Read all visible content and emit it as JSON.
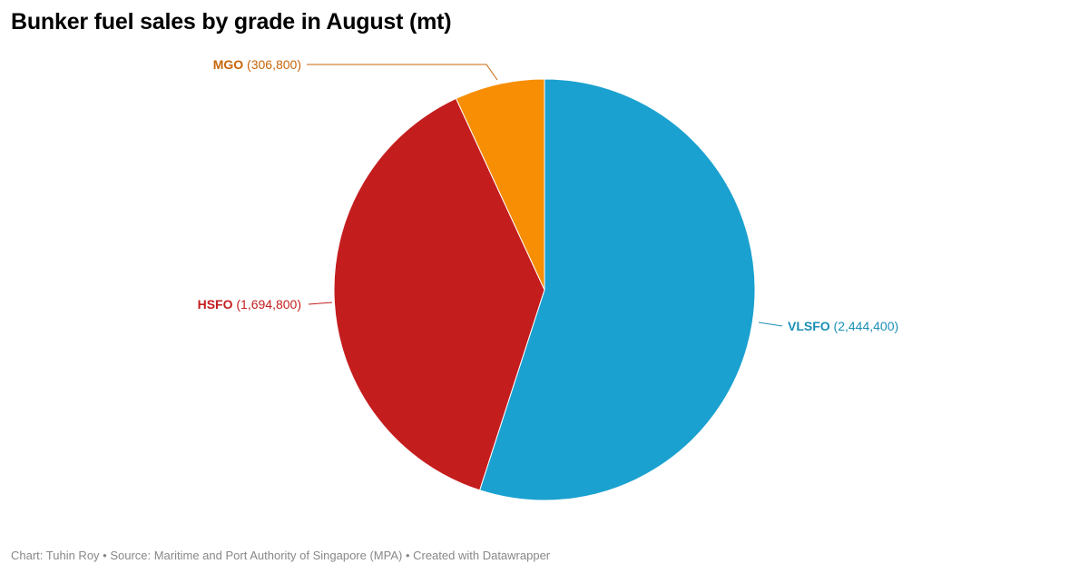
{
  "chart_data": {
    "type": "pie",
    "title": "Bunker fuel sales by grade in August (mt)",
    "slices": [
      {
        "name": "VLSFO",
        "value": 2444400,
        "value_label": "(2,444,400)",
        "color": "#1aa1cf",
        "label_color": "#1b8fb5"
      },
      {
        "name": "HSFO",
        "value": 1694800,
        "value_label": "(1,694,800)",
        "color": "#c41d1e",
        "label_color": "#c41d1e"
      },
      {
        "name": "MGO",
        "value": 306800,
        "value_label": "(306,800)",
        "color": "#f78e03",
        "label_color": "#c8650b"
      }
    ]
  },
  "footer": {
    "text": "Chart: Tuhin Roy • Source: Maritime and Port Authority of Singapore (MPA) • Created with Datawrapper"
  }
}
